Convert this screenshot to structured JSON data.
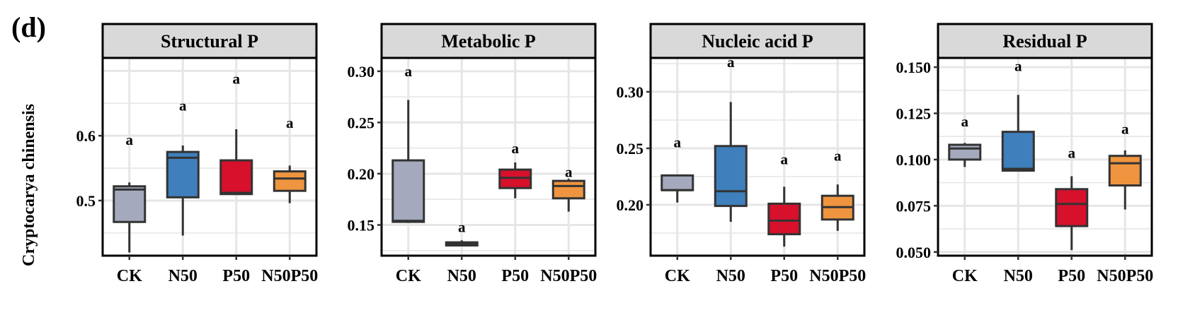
{
  "figure": {
    "panel_letter": "(d)",
    "row_label": "Cryptocarya chinensis",
    "colors": {
      "CK": "#a5a9bd",
      "N50": "#3f7fbc",
      "P50": "#d7102c",
      "N50P50": "#ef953f",
      "strip_bg": "#d9d9d9",
      "grid": "#e6e6e6"
    }
  },
  "chart_data": [
    {
      "type": "box",
      "title": "Structural P",
      "categories": [
        "CK",
        "N50",
        "P50",
        "N50P50"
      ],
      "ylim": [
        0.415,
        0.72
      ],
      "yticks": [
        0.5,
        0.6
      ],
      "ytick_labels": [
        "0.5",
        "0.6"
      ],
      "grid": true,
      "boxes": [
        {
          "category": "CK",
          "min": 0.42,
          "q1": 0.467,
          "median": 0.517,
          "q3": 0.522,
          "max": 0.528,
          "label": "a"
        },
        {
          "category": "N50",
          "min": 0.446,
          "q1": 0.505,
          "median": 0.566,
          "q3": 0.575,
          "max": 0.585,
          "label": "a"
        },
        {
          "category": "P50",
          "min": 0.51,
          "q1": 0.51,
          "median": 0.512,
          "q3": 0.562,
          "max": 0.61,
          "label": "a"
        },
        {
          "category": "N50P50",
          "min": 0.496,
          "q1": 0.515,
          "median": 0.534,
          "q3": 0.545,
          "max": 0.554,
          "label": "a"
        }
      ],
      "label_y": [
        0.586,
        0.639,
        0.68,
        0.612
      ]
    },
    {
      "type": "box",
      "title": "Metabolic P",
      "categories": [
        "CK",
        "N50",
        "P50",
        "N50P50"
      ],
      "ylim": [
        0.12,
        0.313
      ],
      "yticks": [
        0.15,
        0.2,
        0.25,
        0.3
      ],
      "ytick_labels": [
        "0.15",
        "0.20",
        "0.25",
        "0.30"
      ],
      "grid": true,
      "boxes": [
        {
          "category": "CK",
          "min": 0.153,
          "q1": 0.153,
          "median": 0.154,
          "q3": 0.213,
          "max": 0.272,
          "label": "a"
        },
        {
          "category": "N50",
          "min": 0.13,
          "q1": 0.13,
          "median": 0.132,
          "q3": 0.133,
          "max": 0.135,
          "label": "a"
        },
        {
          "category": "P50",
          "min": 0.176,
          "q1": 0.186,
          "median": 0.196,
          "q3": 0.204,
          "max": 0.211,
          "label": "a"
        },
        {
          "category": "N50P50",
          "min": 0.163,
          "q1": 0.176,
          "median": 0.188,
          "q3": 0.193,
          "max": 0.195,
          "label": "a"
        }
      ],
      "label_y": [
        0.295,
        0.143,
        0.22,
        0.197
      ]
    },
    {
      "type": "box",
      "title": "Nucleic acid P",
      "categories": [
        "CK",
        "N50",
        "P50",
        "N50P50"
      ],
      "ylim": [
        0.155,
        0.33
      ],
      "yticks": [
        0.2,
        0.25,
        0.3
      ],
      "ytick_labels": [
        "0.20",
        "0.25",
        "0.30"
      ],
      "grid": true,
      "boxes": [
        {
          "category": "CK",
          "min": 0.202,
          "q1": 0.213,
          "median": 0.213,
          "q3": 0.226,
          "max": 0.226,
          "label": "a"
        },
        {
          "category": "N50",
          "min": 0.185,
          "q1": 0.199,
          "median": 0.212,
          "q3": 0.252,
          "max": 0.291,
          "label": "a"
        },
        {
          "category": "P50",
          "min": 0.163,
          "q1": 0.174,
          "median": 0.186,
          "q3": 0.201,
          "max": 0.216,
          "label": "a"
        },
        {
          "category": "N50P50",
          "min": 0.177,
          "q1": 0.187,
          "median": 0.198,
          "q3": 0.208,
          "max": 0.218,
          "label": "a"
        }
      ],
      "label_y": [
        0.251,
        0.322,
        0.236,
        0.239
      ]
    },
    {
      "type": "box",
      "title": "Residual P",
      "categories": [
        "CK",
        "N50",
        "P50",
        "N50P50"
      ],
      "ylim": [
        0.048,
        0.155
      ],
      "yticks": [
        0.05,
        0.075,
        0.1,
        0.125,
        0.15
      ],
      "ytick_labels": [
        "0.050",
        "0.075",
        "0.100",
        "0.125",
        "0.150"
      ],
      "grid": true,
      "boxes": [
        {
          "category": "CK",
          "min": 0.096,
          "q1": 0.1,
          "median": 0.106,
          "q3": 0.108,
          "max": 0.109,
          "label": "a"
        },
        {
          "category": "N50",
          "min": 0.094,
          "q1": 0.094,
          "median": 0.095,
          "q3": 0.115,
          "max": 0.135,
          "label": "a"
        },
        {
          "category": "P50",
          "min": 0.051,
          "q1": 0.064,
          "median": 0.076,
          "q3": 0.084,
          "max": 0.091,
          "label": "a"
        },
        {
          "category": "N50P50",
          "min": 0.073,
          "q1": 0.086,
          "median": 0.098,
          "q3": 0.102,
          "max": 0.105,
          "label": "a"
        }
      ],
      "label_y": [
        0.118,
        0.148,
        0.101,
        0.114
      ]
    }
  ]
}
